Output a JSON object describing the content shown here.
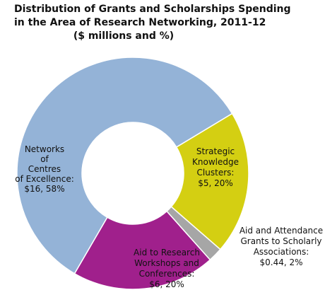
{
  "title_lines": [
    "Distribution of Grants and Scholarships Spending",
    "in the Area of Research Networking, 2011-12",
    "($ millions and %)"
  ],
  "chart_data": {
    "type": "pie",
    "donut": true,
    "title": "Distribution of Grants and Scholarships Spending in the Area of Research Networking, 2011-12 ($ millions and %)",
    "slices": [
      {
        "label_lines": [
          "Strategic",
          "Knowledge",
          "Clusters:",
          "$5, 20%"
        ],
        "value": 5,
        "percent": 20,
        "color": "#d4cf12"
      },
      {
        "label_lines": [
          "Aid and Attendance",
          "Grants to Scholarly",
          "Associations:",
          "$0.44, 2%"
        ],
        "value": 0.44,
        "percent": 2,
        "color": "#a6a6a6"
      },
      {
        "label_lines": [
          "Aid to Research",
          "Workshops and",
          "Conferences:",
          "$6, 20%"
        ],
        "value": 6,
        "percent": 20,
        "color": "#a0208c"
      },
      {
        "label_lines": [
          "Networks",
          "of",
          "Centres",
          "of Excellence:",
          "$16, 58%"
        ],
        "value": 16,
        "percent": 58,
        "color": "#94b3d7"
      }
    ]
  }
}
